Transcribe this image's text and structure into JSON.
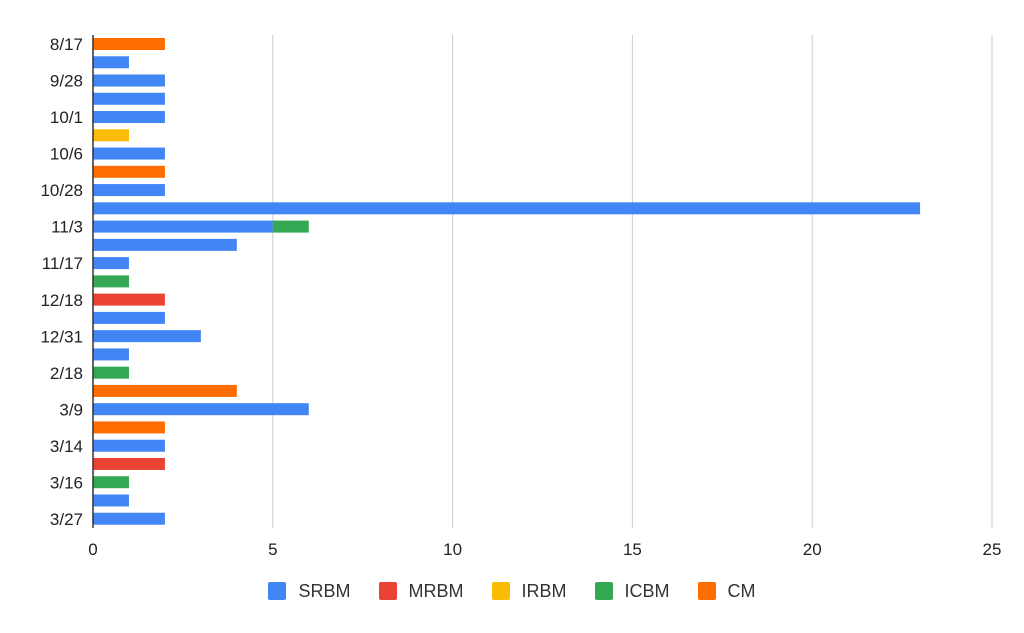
{
  "chart_data": {
    "type": "bar",
    "orientation": "horizontal",
    "stacked": true,
    "title": "",
    "xlabel": "",
    "ylabel": "",
    "xlim": [
      0,
      25
    ],
    "x_ticks": [
      0,
      5,
      10,
      15,
      20,
      25
    ],
    "grid": true,
    "legend_position": "bottom",
    "series": [
      {
        "key": "srbm",
        "name": "SRBM",
        "color": "#4285f4"
      },
      {
        "key": "mrbm",
        "name": "MRBM",
        "color": "#ea4335"
      },
      {
        "key": "irbm",
        "name": "IRBM",
        "color": "#fbbc04"
      },
      {
        "key": "icbm",
        "name": "ICBM",
        "color": "#34a853"
      },
      {
        "key": "cm",
        "name": "CM",
        "color": "#ff6d01"
      }
    ],
    "rows": [
      {
        "label": "8/17",
        "srbm": 0,
        "mrbm": 0,
        "irbm": 0,
        "icbm": 0,
        "cm": 2
      },
      {
        "label": "",
        "srbm": 1,
        "mrbm": 0,
        "irbm": 0,
        "icbm": 0,
        "cm": 0
      },
      {
        "label": "9/28",
        "srbm": 2,
        "mrbm": 0,
        "irbm": 0,
        "icbm": 0,
        "cm": 0
      },
      {
        "label": "",
        "srbm": 2,
        "mrbm": 0,
        "irbm": 0,
        "icbm": 0,
        "cm": 0
      },
      {
        "label": "10/1",
        "srbm": 2,
        "mrbm": 0,
        "irbm": 0,
        "icbm": 0,
        "cm": 0
      },
      {
        "label": "",
        "srbm": 0,
        "mrbm": 0,
        "irbm": 1,
        "icbm": 0,
        "cm": 0
      },
      {
        "label": "10/6",
        "srbm": 2,
        "mrbm": 0,
        "irbm": 0,
        "icbm": 0,
        "cm": 0
      },
      {
        "label": "",
        "srbm": 0,
        "mrbm": 0,
        "irbm": 0,
        "icbm": 0,
        "cm": 2
      },
      {
        "label": "10/28",
        "srbm": 2,
        "mrbm": 0,
        "irbm": 0,
        "icbm": 0,
        "cm": 0
      },
      {
        "label": "",
        "srbm": 23,
        "mrbm": 0,
        "irbm": 0,
        "icbm": 0,
        "cm": 0
      },
      {
        "label": "11/3",
        "srbm": 5,
        "mrbm": 0,
        "irbm": 0,
        "icbm": 1,
        "cm": 0
      },
      {
        "label": "",
        "srbm": 4,
        "mrbm": 0,
        "irbm": 0,
        "icbm": 0,
        "cm": 0
      },
      {
        "label": "11/17",
        "srbm": 1,
        "mrbm": 0,
        "irbm": 0,
        "icbm": 0,
        "cm": 0
      },
      {
        "label": "",
        "srbm": 0,
        "mrbm": 0,
        "irbm": 0,
        "icbm": 1,
        "cm": 0
      },
      {
        "label": "12/18",
        "srbm": 0,
        "mrbm": 2,
        "irbm": 0,
        "icbm": 0,
        "cm": 0
      },
      {
        "label": "",
        "srbm": 2,
        "mrbm": 0,
        "irbm": 0,
        "icbm": 0,
        "cm": 0
      },
      {
        "label": "12/31",
        "srbm": 3,
        "mrbm": 0,
        "irbm": 0,
        "icbm": 0,
        "cm": 0
      },
      {
        "label": "",
        "srbm": 1,
        "mrbm": 0,
        "irbm": 0,
        "icbm": 0,
        "cm": 0
      },
      {
        "label": "2/18",
        "srbm": 0,
        "mrbm": 0,
        "irbm": 0,
        "icbm": 1,
        "cm": 0
      },
      {
        "label": "",
        "srbm": 0,
        "mrbm": 0,
        "irbm": 0,
        "icbm": 0,
        "cm": 4
      },
      {
        "label": "3/9",
        "srbm": 6,
        "mrbm": 0,
        "irbm": 0,
        "icbm": 0,
        "cm": 0
      },
      {
        "label": "",
        "srbm": 0,
        "mrbm": 0,
        "irbm": 0,
        "icbm": 0,
        "cm": 2
      },
      {
        "label": "3/14",
        "srbm": 2,
        "mrbm": 0,
        "irbm": 0,
        "icbm": 0,
        "cm": 0
      },
      {
        "label": "",
        "srbm": 0,
        "mrbm": 2,
        "irbm": 0,
        "icbm": 0,
        "cm": 0
      },
      {
        "label": "3/16",
        "srbm": 0,
        "mrbm": 0,
        "irbm": 0,
        "icbm": 1,
        "cm": 0
      },
      {
        "label": "",
        "srbm": 1,
        "mrbm": 0,
        "irbm": 0,
        "icbm": 0,
        "cm": 0
      },
      {
        "label": "3/27",
        "srbm": 2,
        "mrbm": 0,
        "irbm": 0,
        "icbm": 0,
        "cm": 0
      }
    ]
  }
}
